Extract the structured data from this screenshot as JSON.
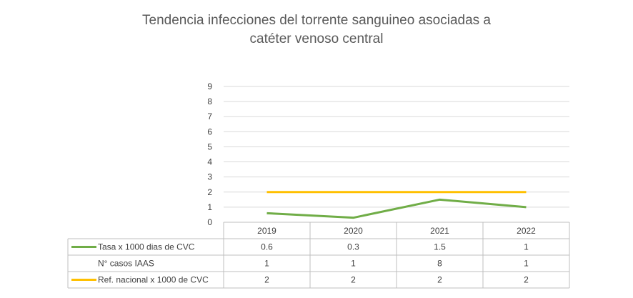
{
  "chart_data": {
    "type": "line",
    "title_lines": [
      "Tendencia infecciones del torrente sanguineo asociadas a",
      "catéter venoso central"
    ],
    "categories": [
      "2019",
      "2020",
      "2021",
      "2022"
    ],
    "yticks": [
      "0",
      "1",
      "2",
      "3",
      "4",
      "5",
      "6",
      "7",
      "8",
      "9"
    ],
    "ylim": [
      0,
      9
    ],
    "grid": true,
    "series": [
      {
        "name": "Tasa x 1000 dias de CVC",
        "values": [
          0.6,
          0.3,
          1.5,
          1
        ],
        "labels": [
          "0.6",
          "0.3",
          "1.5",
          "1"
        ],
        "color": "#70AD47",
        "plotted": true
      },
      {
        "name": "N° casos  IAAS",
        "values": [
          1,
          1,
          8,
          1
        ],
        "labels": [
          "1",
          "1",
          "8",
          "1"
        ],
        "color": "",
        "plotted": false
      },
      {
        "name": "Ref. nacional x 1000 de CVC",
        "values": [
          2,
          2,
          2,
          2
        ],
        "labels": [
          "2",
          "2",
          "2",
          "2"
        ],
        "color": "#FFC000",
        "plotted": true
      }
    ]
  }
}
